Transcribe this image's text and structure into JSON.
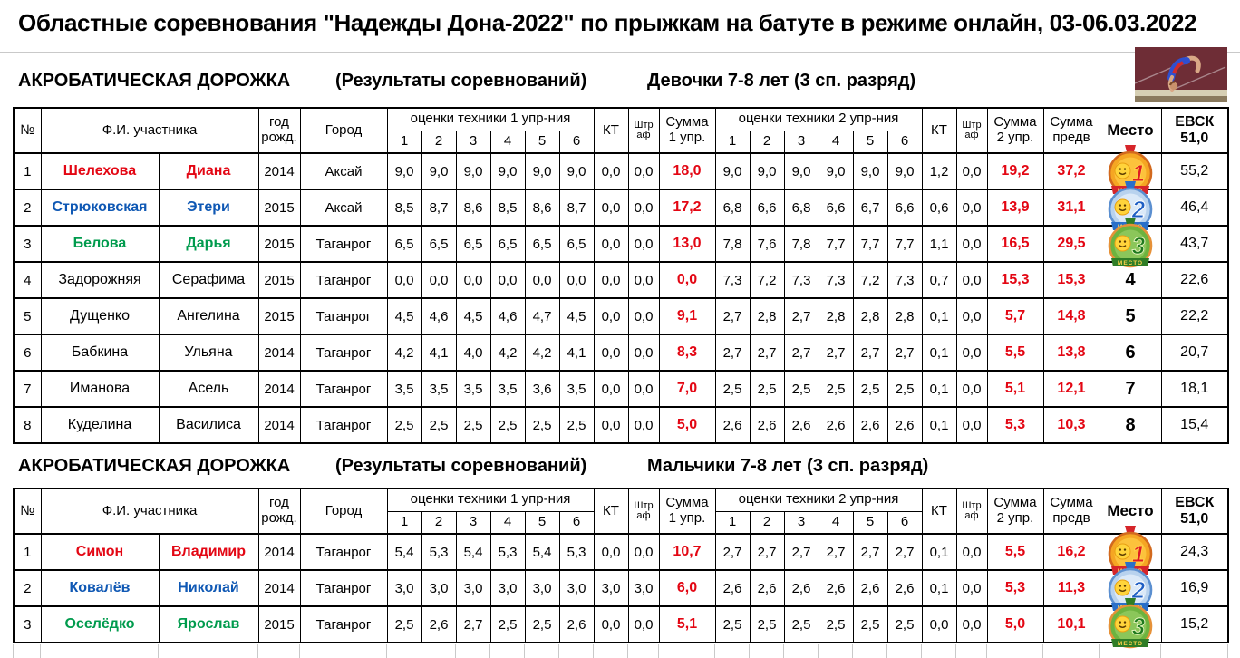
{
  "title": "Областные соревнования \"Надежды Дона-2022\" по прыжкам на батуте в режиме онлайн, 03-06.03.2022",
  "table_header": {
    "num": "№",
    "name": "Ф.И. участника",
    "year": [
      "год",
      "рожд."
    ],
    "city": "Город",
    "ex1": "оценки техники 1 упр-ния",
    "ex2": "оценки техники 2 упр-ния",
    "judge_numbers": [
      "1",
      "2",
      "3",
      "4",
      "5",
      "6"
    ],
    "kt": "КТ",
    "penalty": [
      "Штр",
      "аф"
    ],
    "sum1": [
      "Сумма",
      "1 упр."
    ],
    "sum2": [
      "Сумма",
      "2 упр."
    ],
    "sum_prelim": [
      "Сумма",
      "предв"
    ],
    "place": "Место",
    "evsk": [
      "ЕВСК",
      "51,0"
    ]
  },
  "medal_label": "МЕСТО",
  "icons": {
    "place_1": "gold-smiley-medal-1",
    "place_2": "blue-smiley-medal-2",
    "place_3": "green-smiley-medal-3",
    "photo": "gymnast-tumbling-photo"
  },
  "colors": {
    "name_red": "#e30613",
    "name_blue": "#0f58b4",
    "name_green": "#009b4d",
    "sum_red": "#e30613"
  },
  "medal_colors": {
    "1": {
      "ribbon": "#d6252a",
      "ring": "#f5a623",
      "edge": "#d2691e",
      "inner": "#fcc23c",
      "num": "#e01b22",
      "numStroke": "#ffd24a",
      "banner": "#d6252a",
      "bannerText": "#ffe066"
    },
    "2": {
      "ribbon": "#2a6fc9",
      "ring": "#b8d2ee",
      "edge": "#5b8fd0",
      "inner": "#dbe9f8",
      "num": "#1f5fc4",
      "numStroke": "#ffffff",
      "banner": "#2a6fc9",
      "bannerText": "#ffe066"
    },
    "3": {
      "ribbon": "#2f7d26",
      "ring": "#6db33f",
      "edge": "#e69138",
      "inner": "#8bc65a",
      "num": "#1e7a1e",
      "numStroke": "#e8f5c0",
      "banner": "#2f7d26",
      "bannerText": "#ffd24a"
    }
  },
  "sections": [
    {
      "heading": {
        "discipline": "АКРОБАТИЧЕСКАЯ ДОРОЖКА",
        "results": "(Результаты соревнований)",
        "category": "Девочки 7-8 лет (3 сп. разряд)"
      },
      "rows": [
        {
          "num": "1",
          "surname": "Шелехова",
          "firstname": "Диана",
          "color": "red",
          "year": "2014",
          "city": "Аксай",
          "ex1": [
            "9,0",
            "9,0",
            "9,0",
            "9,0",
            "9,0",
            "9,0"
          ],
          "kt1": "0,0",
          "pen1": "0,0",
          "sum1": "18,0",
          "ex2": [
            "9,0",
            "9,0",
            "9,0",
            "9,0",
            "9,0",
            "9,0"
          ],
          "kt2": "1,2",
          "pen2": "0,0",
          "sum2": "19,2",
          "total": "37,2",
          "place": "1",
          "medal": true,
          "evsk": "55,2"
        },
        {
          "num": "2",
          "surname": "Стрюковская",
          "firstname": "Этери",
          "color": "blue",
          "year": "2015",
          "city": "Аксай",
          "ex1": [
            "8,5",
            "8,7",
            "8,6",
            "8,5",
            "8,6",
            "8,7"
          ],
          "kt1": "0,0",
          "pen1": "0,0",
          "sum1": "17,2",
          "ex2": [
            "6,8",
            "6,6",
            "6,8",
            "6,6",
            "6,7",
            "6,6"
          ],
          "kt2": "0,6",
          "pen2": "0,0",
          "sum2": "13,9",
          "total": "31,1",
          "place": "2",
          "medal": true,
          "evsk": "46,4"
        },
        {
          "num": "3",
          "surname": "Белова",
          "firstname": "Дарья",
          "color": "green",
          "year": "2015",
          "city": "Таганрог",
          "ex1": [
            "6,5",
            "6,5",
            "6,5",
            "6,5",
            "6,5",
            "6,5"
          ],
          "kt1": "0,0",
          "pen1": "0,0",
          "sum1": "13,0",
          "ex2": [
            "7,8",
            "7,6",
            "7,8",
            "7,7",
            "7,7",
            "7,7"
          ],
          "kt2": "1,1",
          "pen2": "0,0",
          "sum2": "16,5",
          "total": "29,5",
          "place": "3",
          "medal": true,
          "evsk": "43,7"
        },
        {
          "num": "4",
          "surname": "Задорожняя",
          "firstname": "Серафима",
          "color": "black",
          "year": "2015",
          "city": "Таганрог",
          "ex1": [
            "0,0",
            "0,0",
            "0,0",
            "0,0",
            "0,0",
            "0,0"
          ],
          "kt1": "0,0",
          "pen1": "0,0",
          "sum1": "0,0",
          "ex2": [
            "7,3",
            "7,2",
            "7,3",
            "7,3",
            "7,2",
            "7,3"
          ],
          "kt2": "0,7",
          "pen2": "0,0",
          "sum2": "15,3",
          "total": "15,3",
          "place": "4",
          "medal": false,
          "evsk": "22,6"
        },
        {
          "num": "5",
          "surname": "Дущенко",
          "firstname": "Ангелина",
          "color": "black",
          "year": "2015",
          "city": "Таганрог",
          "ex1": [
            "4,5",
            "4,6",
            "4,5",
            "4,6",
            "4,7",
            "4,5"
          ],
          "kt1": "0,0",
          "pen1": "0,0",
          "sum1": "9,1",
          "ex2": [
            "2,7",
            "2,8",
            "2,7",
            "2,8",
            "2,8",
            "2,8"
          ],
          "kt2": "0,1",
          "pen2": "0,0",
          "sum2": "5,7",
          "total": "14,8",
          "place": "5",
          "medal": false,
          "evsk": "22,2"
        },
        {
          "num": "6",
          "surname": "Бабкина",
          "firstname": "Ульяна",
          "color": "black",
          "year": "2014",
          "city": "Таганрог",
          "ex1": [
            "4,2",
            "4,1",
            "4,0",
            "4,2",
            "4,2",
            "4,1"
          ],
          "kt1": "0,0",
          "pen1": "0,0",
          "sum1": "8,3",
          "ex2": [
            "2,7",
            "2,7",
            "2,7",
            "2,7",
            "2,7",
            "2,7"
          ],
          "kt2": "0,1",
          "pen2": "0,0",
          "sum2": "5,5",
          "total": "13,8",
          "place": "6",
          "medal": false,
          "evsk": "20,7"
        },
        {
          "num": "7",
          "surname": "Иманова",
          "firstname": "Асель",
          "color": "black",
          "year": "2014",
          "city": "Таганрог",
          "ex1": [
            "3,5",
            "3,5",
            "3,5",
            "3,5",
            "3,6",
            "3,5"
          ],
          "kt1": "0,0",
          "pen1": "0,0",
          "sum1": "7,0",
          "ex2": [
            "2,5",
            "2,5",
            "2,5",
            "2,5",
            "2,5",
            "2,5"
          ],
          "kt2": "0,1",
          "pen2": "0,0",
          "sum2": "5,1",
          "total": "12,1",
          "place": "7",
          "medal": false,
          "evsk": "18,1"
        },
        {
          "num": "8",
          "surname": "Куделина",
          "firstname": "Василиса",
          "color": "black",
          "year": "2014",
          "city": "Таганрог",
          "ex1": [
            "2,5",
            "2,5",
            "2,5",
            "2,5",
            "2,5",
            "2,5"
          ],
          "kt1": "0,0",
          "pen1": "0,0",
          "sum1": "5,0",
          "ex2": [
            "2,6",
            "2,6",
            "2,6",
            "2,6",
            "2,6",
            "2,6"
          ],
          "kt2": "0,1",
          "pen2": "0,0",
          "sum2": "5,3",
          "total": "10,3",
          "place": "8",
          "medal": false,
          "evsk": "15,4"
        }
      ]
    },
    {
      "heading": {
        "discipline": "АКРОБАТИЧЕСКАЯ ДОРОЖКА",
        "results": "(Результаты соревнований)",
        "category": "Мальчики 7-8 лет (3 сп. разряд)"
      },
      "rows": [
        {
          "num": "1",
          "surname": "Симон",
          "firstname": "Владимир",
          "color": "red",
          "year": "2014",
          "city": "Таганрог",
          "ex1": [
            "5,4",
            "5,3",
            "5,4",
            "5,3",
            "5,4",
            "5,3"
          ],
          "kt1": "0,0",
          "pen1": "0,0",
          "sum1": "10,7",
          "ex2": [
            "2,7",
            "2,7",
            "2,7",
            "2,7",
            "2,7",
            "2,7"
          ],
          "kt2": "0,1",
          "pen2": "0,0",
          "sum2": "5,5",
          "total": "16,2",
          "place": "1",
          "medal": true,
          "evsk": "24,3"
        },
        {
          "num": "2",
          "surname": "Ковалёв",
          "firstname": "Николай",
          "color": "blue",
          "year": "2014",
          "city": "Таганрог",
          "ex1": [
            "3,0",
            "3,0",
            "3,0",
            "3,0",
            "3,0",
            "3,0"
          ],
          "kt1": "3,0",
          "pen1": "3,0",
          "sum1": "6,0",
          "ex2": [
            "2,6",
            "2,6",
            "2,6",
            "2,6",
            "2,6",
            "2,6"
          ],
          "kt2": "0,1",
          "pen2": "0,0",
          "sum2": "5,3",
          "total": "11,3",
          "place": "2",
          "medal": true,
          "evsk": "16,9"
        },
        {
          "num": "3",
          "surname": "Оселёдко",
          "firstname": "Ярослав",
          "color": "green",
          "year": "2015",
          "city": "Таганрог",
          "ex1": [
            "2,5",
            "2,6",
            "2,7",
            "2,5",
            "2,5",
            "2,6"
          ],
          "kt1": "0,0",
          "pen1": "0,0",
          "sum1": "5,1",
          "ex2": [
            "2,5",
            "2,5",
            "2,5",
            "2,5",
            "2,5",
            "2,5"
          ],
          "kt2": "0,0",
          "pen2": "0,0",
          "sum2": "5,0",
          "total": "10,1",
          "place": "3",
          "medal": true,
          "evsk": "15,2"
        }
      ]
    }
  ]
}
